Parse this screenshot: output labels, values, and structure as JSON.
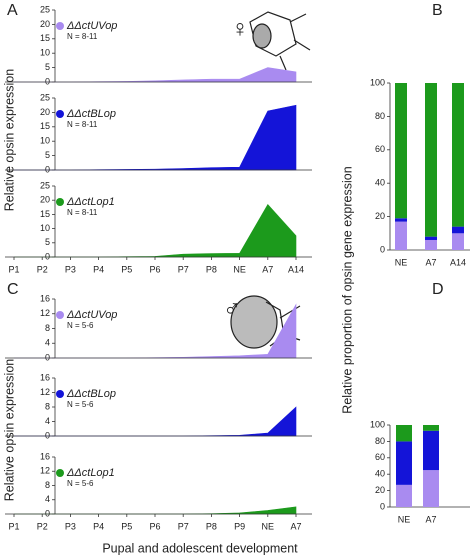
{
  "chart_data": [
    {
      "type": "area",
      "panel_label": "A",
      "y_label": "Relative opsin expression",
      "symbol": "♀",
      "series": [
        {
          "name": "ΔΔctUVop",
          "note_label": "N = 8-11",
          "color": "#a98bf0",
          "values": [
            0,
            0,
            0,
            0.1,
            0.2,
            0.4,
            0.7,
            1,
            1,
            5,
            3.5
          ]
        }
      ],
      "ylim": [
        0,
        25
      ],
      "yticks": [
        0,
        5,
        10,
        15,
        20,
        25
      ]
    },
    {
      "type": "area",
      "series": [
        {
          "name": "ΔΔctBLop",
          "note_label": "N = 8-11",
          "color": "#1414d8",
          "values": [
            0,
            0,
            0,
            0.1,
            0.2,
            0.3,
            0.5,
            0.8,
            1,
            20.5,
            22.5
          ]
        }
      ],
      "ylim": [
        0,
        25
      ],
      "yticks": [
        0,
        5,
        10,
        15,
        20,
        25
      ]
    },
    {
      "type": "area",
      "categories": [
        "P1",
        "P2",
        "P3",
        "P4",
        "P5",
        "P6",
        "P7",
        "P8",
        "NE",
        "A7",
        "A14"
      ],
      "series": [
        {
          "name": "ΔΔctLop1",
          "note_label": "N = 8-11",
          "color": "#1c9a1c",
          "values": [
            0,
            0,
            0,
            0,
            0.1,
            0.2,
            1,
            1.2,
            1.3,
            18.5,
            7.5
          ]
        }
      ],
      "ylim": [
        0,
        25
      ],
      "yticks": [
        0,
        5,
        10,
        15,
        20,
        25
      ]
    },
    {
      "type": "stacked-bar",
      "panel_label": "B",
      "y_label": "Relative proportion of opsin gene expression",
      "categories": [
        "NE",
        "A7",
        "A14"
      ],
      "series": [
        {
          "color": "#a98bf0",
          "values": [
            17,
            6,
            10
          ]
        },
        {
          "color": "#1414d8",
          "values": [
            2,
            2,
            4
          ]
        },
        {
          "color": "#1c9a1c",
          "values": [
            81,
            92,
            86
          ]
        }
      ],
      "ylim": [
        0,
        100
      ],
      "yticks": [
        0,
        20,
        40,
        60,
        80,
        100
      ]
    },
    {
      "type": "area",
      "panel_label": "C",
      "y_label": "Relative opsin expression",
      "symbol": "♂",
      "series": [
        {
          "name": "ΔΔctUVop",
          "note_label": "N = 5-6",
          "color": "#a98bf0",
          "values": [
            0,
            0,
            0,
            0,
            0,
            0.1,
            0.2,
            0.4,
            0.6,
            1,
            14.5
          ]
        }
      ],
      "ylim": [
        0,
        16
      ],
      "yticks": [
        0,
        4,
        8,
        12,
        16
      ]
    },
    {
      "type": "area",
      "series": [
        {
          "name": "ΔΔctBLop",
          "note_label": "N = 5-6",
          "color": "#1414d8",
          "values": [
            0,
            0,
            0,
            0,
            0,
            0,
            0,
            0.1,
            0.2,
            0.8,
            8
          ]
        }
      ],
      "ylim": [
        0,
        16
      ],
      "yticks": [
        0,
        4,
        8,
        12,
        16
      ]
    },
    {
      "type": "area",
      "x_label": "Pupal and adolescent development",
      "categories": [
        "P1",
        "P2",
        "P3",
        "P4",
        "P5",
        "P6",
        "P7",
        "P8",
        "P9",
        "NE",
        "A7"
      ],
      "series": [
        {
          "name": "ΔΔctLop1",
          "note_label": "N = 5-6",
          "color": "#1c9a1c",
          "values": [
            0,
            0,
            0,
            0,
            0,
            0,
            0,
            0.1,
            0.3,
            1,
            2
          ]
        }
      ],
      "ylim": [
        0,
        16
      ],
      "yticks": [
        0,
        4,
        8,
        12,
        16
      ]
    },
    {
      "type": "stacked-bar",
      "panel_label": "D",
      "categories": [
        "NE",
        "A7"
      ],
      "series": [
        {
          "color": "#a98bf0",
          "values": [
            27,
            45
          ]
        },
        {
          "color": "#1414d8",
          "values": [
            53,
            48
          ]
        },
        {
          "color": "#1c9a1c",
          "values": [
            20,
            7
          ]
        }
      ],
      "ylim": [
        0,
        100
      ],
      "yticks": [
        0,
        20,
        40,
        60,
        80,
        100
      ]
    }
  ]
}
